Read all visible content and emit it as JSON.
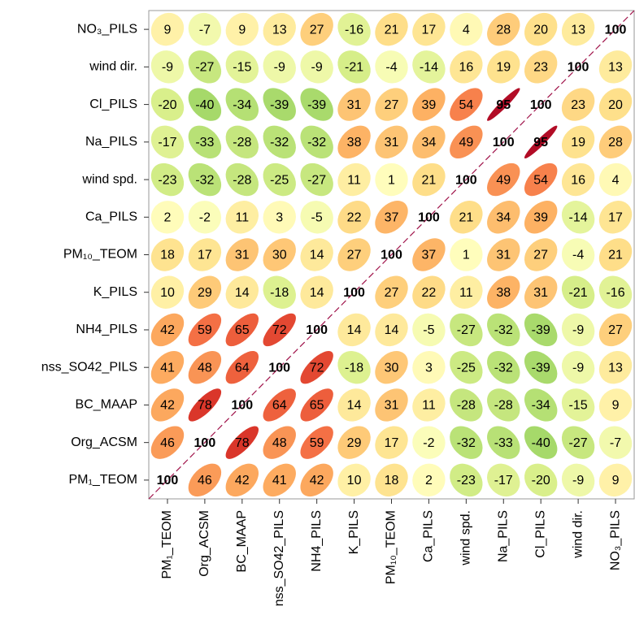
{
  "chart_data": {
    "type": "corrplot",
    "x_categories": [
      "PM₁_TEOM",
      "Org_ACSM",
      "BC_MAAP",
      "nss_SO42_PILS",
      "NH4_PILS",
      "K_PILS",
      "PM₁₀_TEOM",
      "Ca_PILS",
      "wind spd.",
      "Na_PILS",
      "Cl_PILS",
      "wind dir.",
      "NO₃_PILS"
    ],
    "y_categories": [
      "NO₃_PILS",
      "wind dir.",
      "Cl_PILS",
      "Na_PILS",
      "wind spd.",
      "Ca_PILS",
      "PM₁₀_TEOM",
      "K_PILS",
      "NH4_PILS",
      "nss_SO42_PILS",
      "BC_MAAP",
      "Org_ACSM",
      "PM₁_TEOM"
    ],
    "values": [
      [
        9,
        -7,
        9,
        13,
        27,
        -16,
        21,
        17,
        4,
        28,
        20,
        13,
        100
      ],
      [
        -9,
        -27,
        -15,
        -9,
        -9,
        -21,
        -4,
        -14,
        16,
        19,
        23,
        100,
        13
      ],
      [
        -20,
        -40,
        -34,
        -39,
        -39,
        31,
        27,
        39,
        54,
        95,
        100,
        23,
        20
      ],
      [
        -17,
        -33,
        -28,
        -32,
        -32,
        38,
        31,
        34,
        49,
        100,
        95,
        19,
        28
      ],
      [
        -23,
        -32,
        -28,
        -25,
        -27,
        11,
        1,
        21,
        100,
        49,
        54,
        16,
        4
      ],
      [
        2,
        -2,
        11,
        3,
        -5,
        22,
        37,
        100,
        21,
        34,
        39,
        -14,
        17
      ],
      [
        18,
        17,
        31,
        30,
        14,
        27,
        100,
        37,
        1,
        31,
        27,
        -4,
        21
      ],
      [
        10,
        29,
        14,
        -18,
        14,
        100,
        27,
        22,
        11,
        38,
        31,
        -21,
        -16
      ],
      [
        42,
        59,
        65,
        72,
        100,
        14,
        14,
        -5,
        -27,
        -32,
        -39,
        -9,
        27
      ],
      [
        41,
        48,
        64,
        100,
        72,
        -18,
        30,
        3,
        -25,
        -32,
        -39,
        -9,
        13
      ],
      [
        42,
        78,
        100,
        64,
        65,
        14,
        31,
        11,
        -28,
        -28,
        -34,
        -15,
        9
      ],
      [
        46,
        100,
        78,
        48,
        59,
        29,
        17,
        -2,
        -32,
        -33,
        -40,
        -27,
        -7
      ],
      [
        100,
        46,
        42,
        41,
        42,
        10,
        18,
        2,
        -23,
        -17,
        -20,
        -9,
        9
      ]
    ],
    "vlim": [
      -100,
      100
    ],
    "colors": [
      "#006837",
      "#1a9850",
      "#66bd63",
      "#a6d96a",
      "#d9ef8b",
      "#ffffbf",
      "#fee08b",
      "#fdae61",
      "#f46d43",
      "#d73027",
      "#a50026"
    ]
  }
}
